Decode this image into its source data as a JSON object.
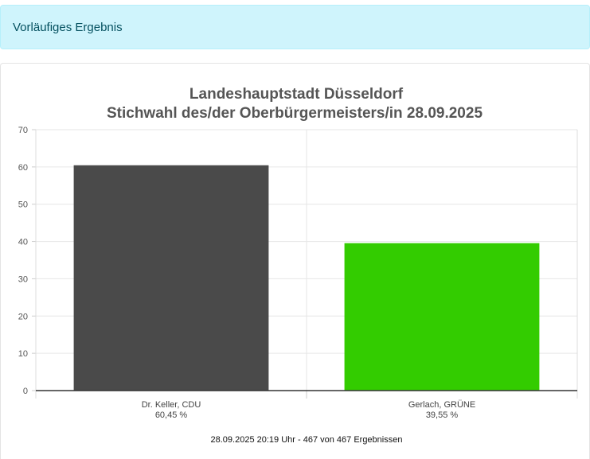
{
  "banner": {
    "text": "Vorläufiges Ergebnis"
  },
  "chart_data": {
    "type": "bar",
    "title_lines": [
      "Landeshauptstadt Düsseldorf",
      "Stichwahl des/der Oberbürgermeisters/in 28.09.2025"
    ],
    "categories": [
      {
        "name": "Dr. Keller, CDU",
        "value_label": "60,45 %",
        "value": 60.45,
        "color": "#4a4a4a"
      },
      {
        "name": "Gerlach, GRÜNE",
        "value_label": "39,55 %",
        "value": 39.55,
        "color": "#33cc00"
      }
    ],
    "yticks": [
      0,
      10,
      20,
      30,
      40,
      50,
      60,
      70
    ],
    "ylim": [
      0,
      70
    ],
    "grid": true,
    "footer": "28.09.2025 20:19 Uhr - 467 von 467 Ergebnissen"
  }
}
